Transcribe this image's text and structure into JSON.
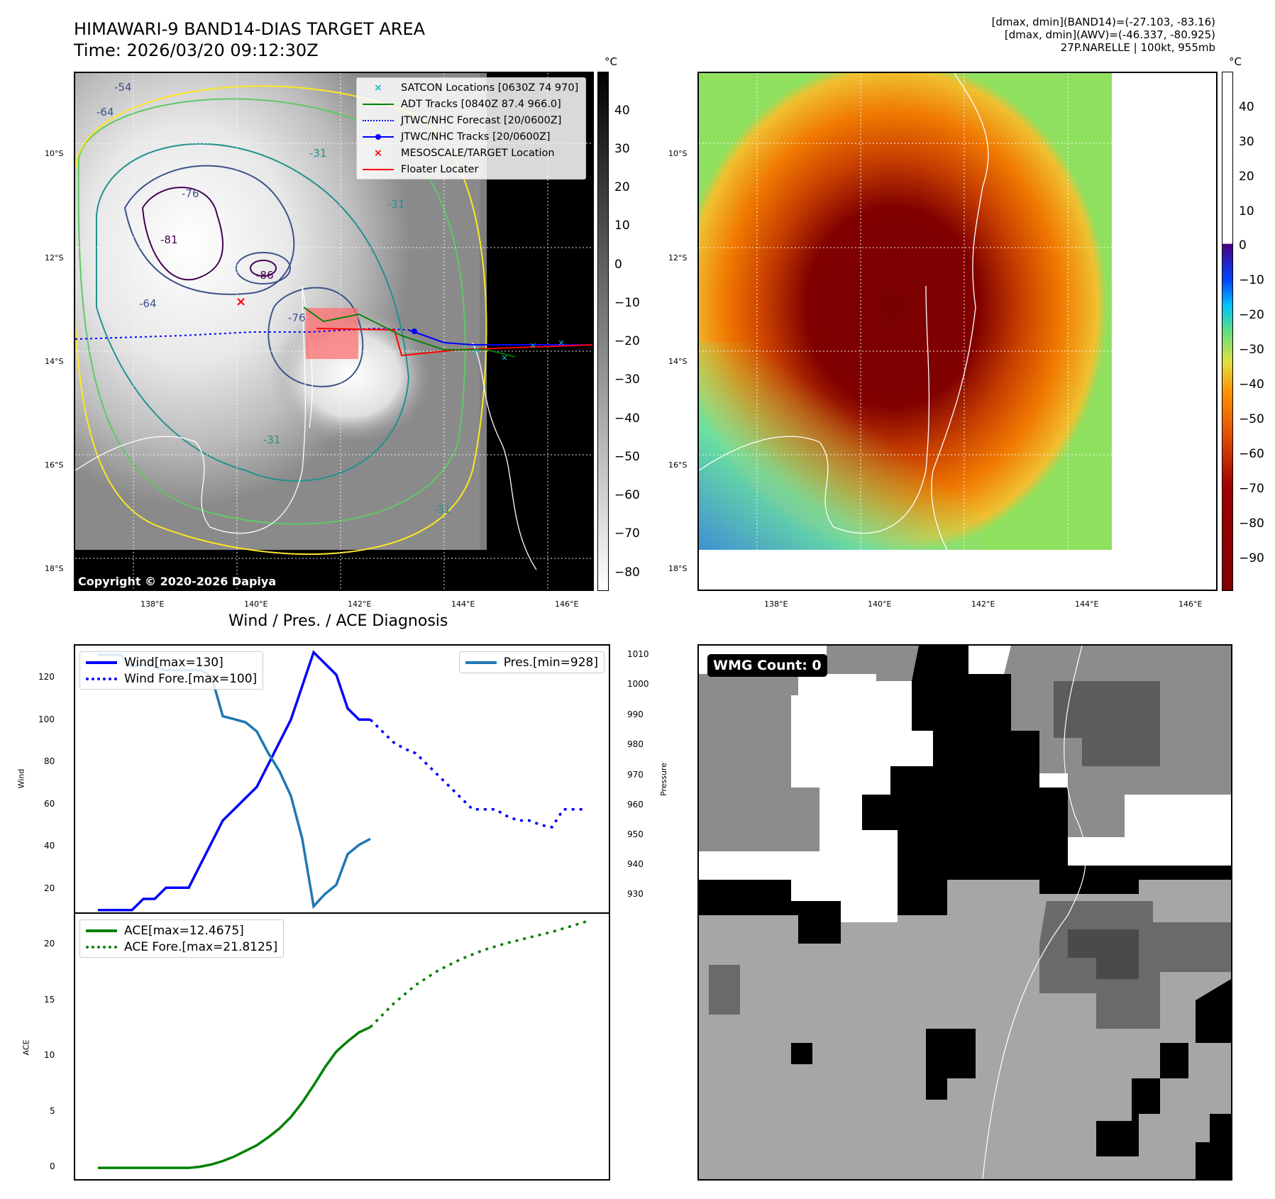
{
  "header": {
    "title_line1": "HIMAWARI-9 BAND14-DIAS TARGET AREA",
    "title_line2": "Time: 2026/03/20 09:12:30Z",
    "info_line1": "[dmax, dmin](BAND14)=(-27.103, -83.16)",
    "info_line2": "[dmax, dmin](AWV)=(-46.337, -80.925)",
    "info_line3": "27P.NARELLE | 100kt, 955mb"
  },
  "map1": {
    "copyright": "Copyright © 2020-2026 Dapiya",
    "lon_ticks": [
      "138°E",
      "140°E",
      "142°E",
      "144°E",
      "146°E"
    ],
    "lat_ticks": [
      "10°S",
      "12°S",
      "14°S",
      "16°S",
      "18°S"
    ],
    "cbar_unit": "°C",
    "cbar_ticks": [
      "40",
      "30",
      "20",
      "10",
      "0",
      "−10",
      "−20",
      "−30",
      "−40",
      "−50",
      "−60",
      "−70",
      "−80"
    ],
    "contour_labels": [
      "-54",
      "-64",
      "-76",
      "-81",
      "-86",
      "-64",
      "-76",
      "-31",
      "-31",
      "-31",
      "-31"
    ],
    "legend": [
      {
        "label": "SATCON Locations [0630Z 74 970]",
        "color": "#17becf",
        "kind": "x"
      },
      {
        "label": "ADT Tracks [0840Z 87.4 966.0]",
        "color": "#008000",
        "kind": "line"
      },
      {
        "label": "JTWC/NHC Forecast [20/0600Z]",
        "color": "#0000ff",
        "kind": "dotted"
      },
      {
        "label": "JTWC/NHC Tracks [20/0600Z]",
        "color": "#0000ff",
        "kind": "dotline"
      },
      {
        "label": "MESOSCALE/TARGET Location",
        "color": "#ff0000",
        "kind": "x"
      },
      {
        "label": "Floater Locater",
        "color": "#ff0000",
        "kind": "line"
      }
    ]
  },
  "map2": {
    "lon_ticks": [
      "138°E",
      "140°E",
      "142°E",
      "144°E",
      "146°E"
    ],
    "lat_ticks": [
      "10°S",
      "12°S",
      "14°S",
      "16°S",
      "18°S"
    ],
    "cbar_unit": "°C",
    "cbar_ticks": [
      "40",
      "30",
      "20",
      "10",
      "0",
      "−10",
      "−20",
      "−30",
      "−40",
      "−50",
      "−60",
      "−70",
      "−80",
      "−90"
    ]
  },
  "diag": {
    "title": "Wind / Pres. / ACE Diagnosis",
    "wind_ylabel": "Wind",
    "pres_ylabel": "Pressure",
    "ace_ylabel": "ACE",
    "wind_ticks": [
      "120",
      "100",
      "80",
      "60",
      "40",
      "20"
    ],
    "pres_ticks": [
      "1010",
      "1000",
      "990",
      "980",
      "970",
      "960",
      "950",
      "940",
      "930"
    ],
    "ace_ticks": [
      "20",
      "15",
      "10",
      "5",
      "0"
    ],
    "legend_wind": [
      "Wind[max=130]",
      "Wind Fore.[max=100]"
    ],
    "legend_pres": [
      "Pres.[min=928]"
    ],
    "legend_ace": [
      "ACE[max=12.4675]",
      "ACE Fore.[max=21.8125]"
    ]
  },
  "wmg": {
    "label": "WMG Count: 0"
  },
  "colors": {
    "wind": "#0000ff",
    "pres": "#1f77b4",
    "ace": "#008000"
  },
  "chart_data": [
    {
      "type": "line",
      "title": "Wind / Pres. / ACE Diagnosis",
      "ylabel": "Wind",
      "ylim": [
        14,
        133
      ],
      "series": [
        {
          "name": "Wind[max=130]",
          "x": [
            0,
            1,
            2,
            3,
            4,
            5,
            6,
            7,
            8,
            9,
            10,
            11,
            12,
            13,
            14,
            15,
            16,
            17,
            18,
            19,
            20,
            21,
            22,
            23,
            24
          ],
          "values": [
            15,
            15,
            15,
            15,
            20,
            20,
            25,
            25,
            25,
            35,
            45,
            55,
            60,
            65,
            70,
            80,
            90,
            100,
            115,
            130,
            125,
            120,
            105,
            100,
            100
          ]
        },
        {
          "name": "Wind Fore.[max=100]",
          "x": [
            24,
            25,
            26,
            27,
            28,
            29,
            30,
            31,
            32,
            33,
            34,
            35,
            36,
            37,
            38,
            39,
            40,
            41,
            42,
            43
          ],
          "values": [
            100,
            95,
            90,
            87,
            85,
            80,
            75,
            70,
            65,
            60,
            60,
            60,
            57,
            55,
            55,
            53,
            52,
            60,
            60,
            60
          ]
        },
        {
          "name": "Pres.[min=928]",
          "axis": "right",
          "ylim": [
            926,
            1013
          ],
          "x": [
            0,
            1,
            2,
            3,
            4,
            5,
            6,
            7,
            8,
            9,
            10,
            11,
            12,
            13,
            14,
            15,
            16,
            17,
            18,
            19,
            20,
            21,
            22,
            23,
            24
          ],
          "values": [
            1010,
            1010,
            1010,
            1006,
            1007,
            1006,
            1005,
            1005,
            1005,
            1005,
            1003,
            990,
            989,
            988,
            985,
            978,
            972,
            964,
            950,
            928,
            932,
            935,
            945,
            948,
            950
          ]
        }
      ]
    },
    {
      "type": "line",
      "ylabel": "ACE",
      "ylim": [
        -1,
        22.5
      ],
      "series": [
        {
          "name": "ACE[max=12.4675]",
          "x": [
            0,
            2,
            4,
            6,
            8,
            9,
            10,
            11,
            12,
            13,
            14,
            15,
            16,
            17,
            18,
            19,
            20,
            21,
            22,
            23,
            24
          ],
          "values": [
            0,
            0,
            0,
            0,
            0,
            0.1,
            0.3,
            0.6,
            1.0,
            1.5,
            2.0,
            2.7,
            3.5,
            4.5,
            5.8,
            7.3,
            8.9,
            10.3,
            11.2,
            12.0,
            12.4675
          ]
        },
        {
          "name": "ACE Fore.[max=21.8125]",
          "x": [
            24,
            26,
            28,
            30,
            32,
            34,
            36,
            38,
            40,
            42,
            43
          ],
          "values": [
            12.4675,
            14.5,
            16.2,
            17.5,
            18.5,
            19.3,
            19.9,
            20.4,
            20.9,
            21.5,
            21.8125
          ]
        }
      ]
    }
  ]
}
